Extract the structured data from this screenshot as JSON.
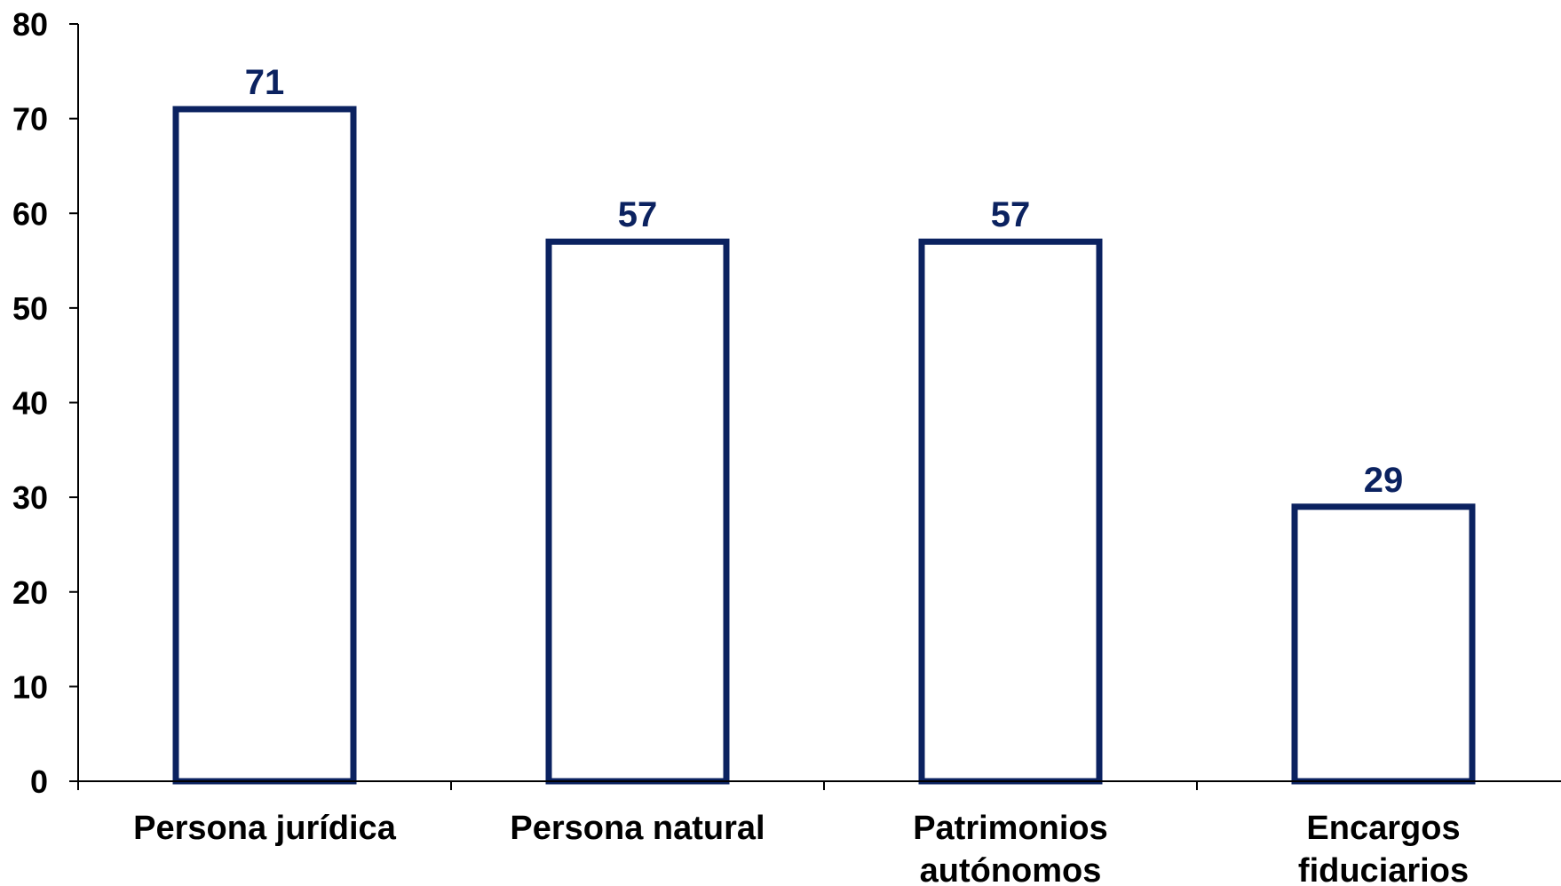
{
  "chart_data": {
    "type": "bar",
    "categories": [
      [
        "Persona jurídica"
      ],
      [
        "Persona natural"
      ],
      [
        "Patrimonios",
        "autónomos"
      ],
      [
        "Encargos",
        "fiduciarios"
      ]
    ],
    "values": [
      71,
      57,
      57,
      29
    ],
    "data_labels": [
      "71",
      "57",
      "57",
      "29"
    ],
    "title": "",
    "xlabel": "",
    "ylabel": "",
    "ylim": [
      0,
      80
    ],
    "yticks": [
      0,
      10,
      20,
      30,
      40,
      50,
      60,
      70,
      80
    ],
    "ytick_labels": [
      "0",
      "10",
      "20",
      "30",
      "40",
      "50",
      "60",
      "70",
      "80"
    ],
    "grid": false,
    "legend": "none",
    "colors": {
      "bar_outline": "#0b2260",
      "bar_fill": "#ffffff",
      "data_label": "#0b2260",
      "axis": "#000000"
    }
  }
}
